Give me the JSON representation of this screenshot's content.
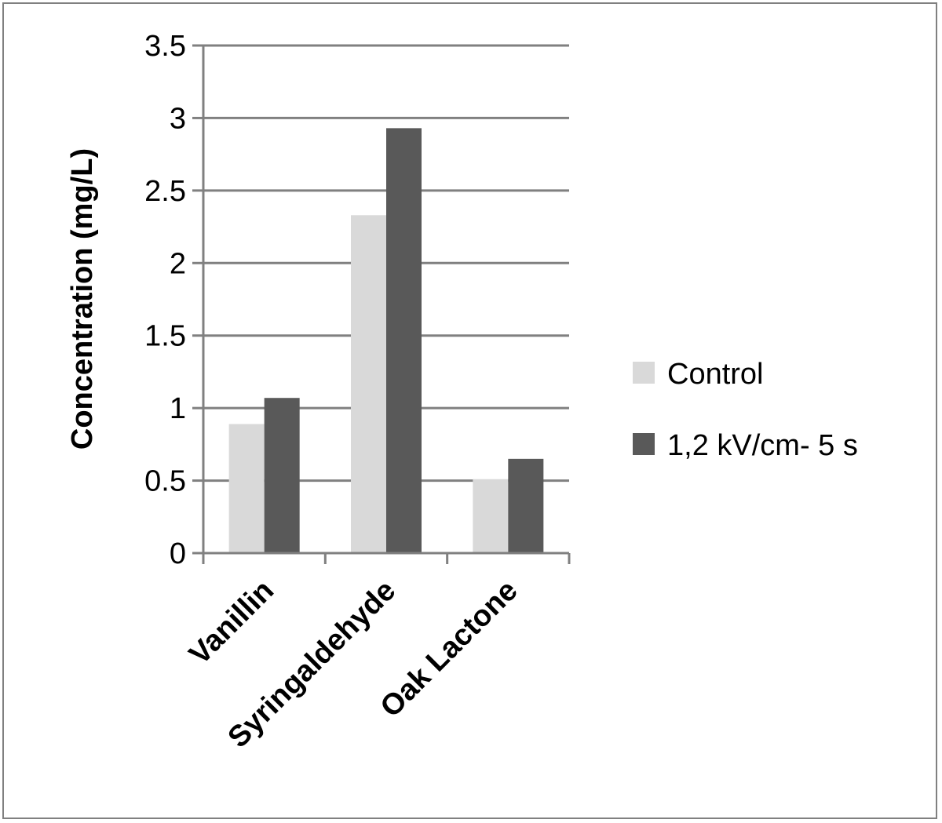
{
  "chart_data": {
    "type": "bar",
    "title": "",
    "xlabel": "",
    "ylabel": "Concentration (mg/L)",
    "ylim": [
      0,
      3.5
    ],
    "yticks": [
      0,
      0.5,
      1,
      1.5,
      2,
      2.5,
      3,
      3.5
    ],
    "ytick_labels": [
      "0",
      "0.5",
      "1",
      "1.5",
      "2",
      "2.5",
      "3",
      "3.5"
    ],
    "categories": [
      "Vanillin",
      "Syringaldehyde",
      "Oak Lactone"
    ],
    "series": [
      {
        "name": "Control",
        "color": "#d9d9d9",
        "values": [
          0.89,
          2.33,
          0.51
        ]
      },
      {
        "name": "1,2 kV/cm- 5 s",
        "color": "#595959",
        "values": [
          1.07,
          2.93,
          0.65
        ]
      }
    ],
    "grid": true,
    "legend_position": "right"
  }
}
